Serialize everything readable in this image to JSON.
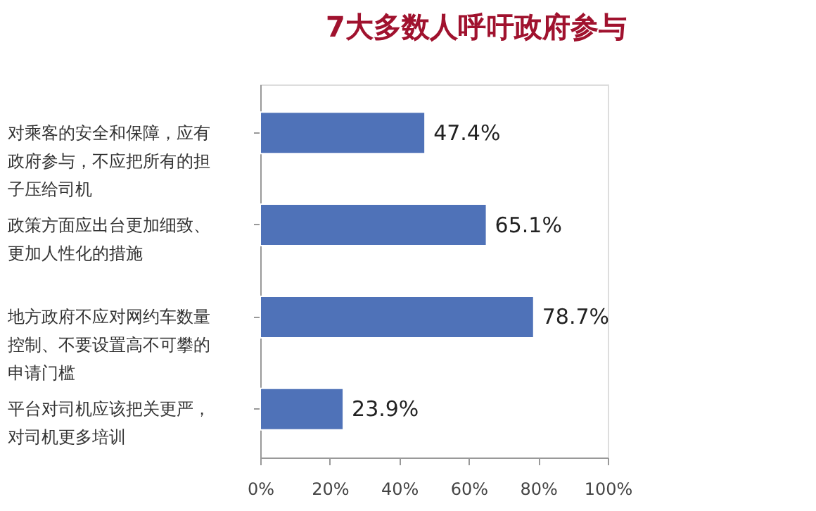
{
  "chart_data": {
    "type": "bar",
    "orientation": "horizontal",
    "title": "7大多数人呼吁政府参与",
    "categories": [
      "对乘客的安全和保障，应有政府参与，不应把所有的担子压给司机",
      "政策方面应出台更加细致、更加人性化的措施",
      "地方政府不应对网约车数量控制、不要设置高不可攀的申请门槛",
      "平台对司机应该把关更严，对司机更多培训"
    ],
    "values": [
      47.4,
      65.1,
      78.7,
      23.9
    ],
    "value_labels": [
      "47.4%",
      "65.1%",
      "78.7%",
      "23.9%"
    ],
    "color": "#4f72b8",
    "xlim": [
      0,
      100
    ],
    "xticks": [
      {
        "value": 0,
        "label": "0%"
      },
      {
        "value": 20,
        "label": "20%"
      },
      {
        "value": 40,
        "label": "40%"
      },
      {
        "value": 60,
        "label": "60%"
      },
      {
        "value": 80,
        "label": "80%"
      },
      {
        "value": 100,
        "label": "100%"
      }
    ],
    "grid": false
  }
}
